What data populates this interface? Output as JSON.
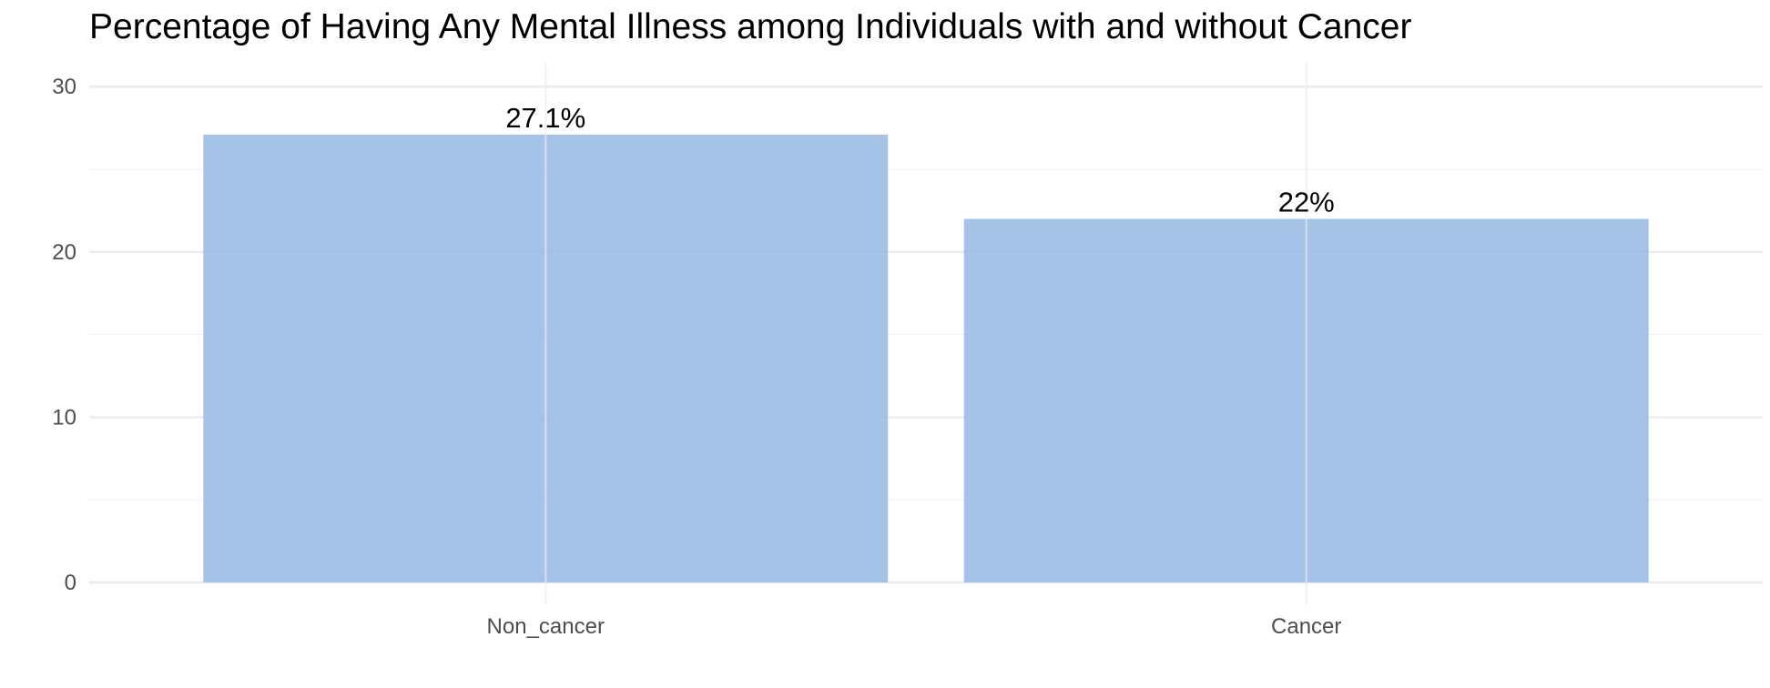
{
  "chart_data": {
    "type": "bar",
    "title": "Percentage of Having Any Mental Illness among Individuals with and without Cancer",
    "xlabel": "",
    "ylabel": "",
    "categories": [
      "Non_cancer",
      "Cancer"
    ],
    "values": [
      27.1,
      22
    ],
    "data_labels": [
      "27.1%",
      "22%"
    ],
    "ylim": [
      0,
      31.5
    ],
    "yticks": [
      0,
      10,
      20,
      30
    ],
    "ytick_labels": [
      "0",
      "10",
      "20",
      "30"
    ],
    "grid": true,
    "legend": "none",
    "bar_color": "#94b8e3"
  }
}
